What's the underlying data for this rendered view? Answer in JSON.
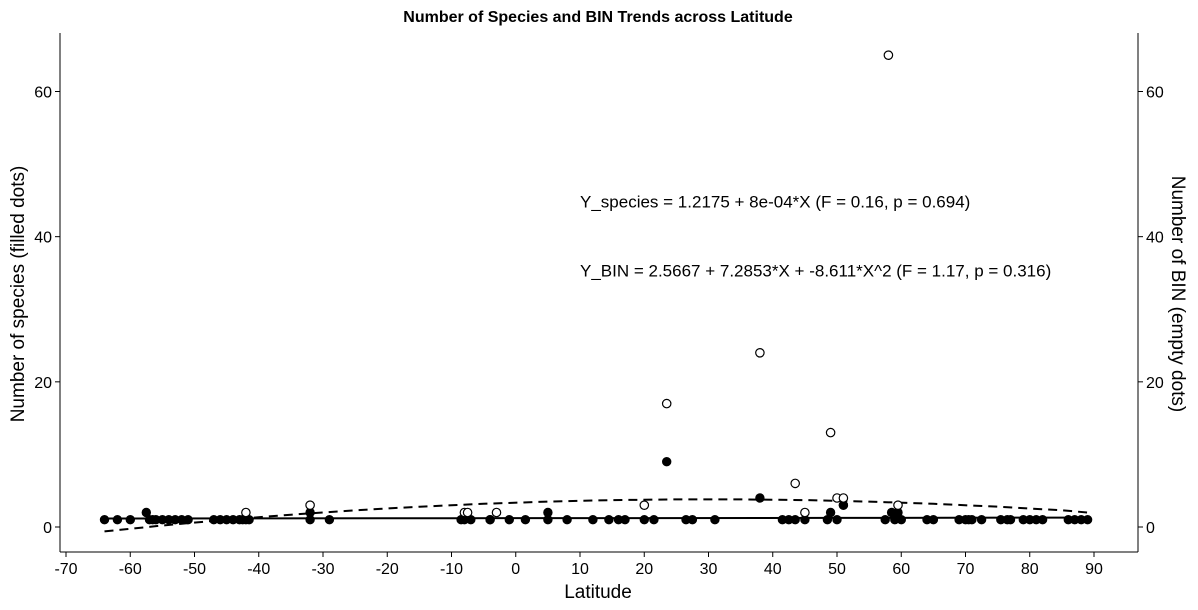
{
  "chart_data": {
    "type": "scatter",
    "title": "Number of Species and BIN Trends across Latitude",
    "xlabel": "Latitude",
    "ylabel": "Number of species (filled dots)",
    "y2label": "Number of BIN (empty dots)",
    "xlim": [
      -70,
      90
    ],
    "ylim": [
      -2,
      68
    ],
    "xticks": [
      -70,
      -60,
      -50,
      -40,
      -30,
      -20,
      -10,
      0,
      10,
      20,
      30,
      40,
      50,
      60,
      70,
      80,
      90
    ],
    "yticks": [
      0,
      20,
      40,
      60
    ],
    "grid": false,
    "annotations": [
      {
        "text": "Y_species = 1.2175 + 8e-04*X (F = 0.16,  p = 0.694)",
        "x": 10,
        "y": 44
      },
      {
        "text": "Y_BIN = 2.5667 + 7.2853*X + -8.611*X^2 (F = 1.17,  p = 0.316)",
        "x": 10,
        "y": 34.5
      }
    ],
    "series": [
      {
        "name": "Species",
        "marker": "filled-circle",
        "color": "#000000",
        "x": [
          -64,
          -62,
          -60,
          -57.5,
          -57,
          -56.5,
          -56,
          -55,
          -54,
          -53,
          -52,
          -51,
          -47,
          -46,
          -45,
          -44,
          -43,
          -42.5,
          -42,
          -41.5,
          -32,
          -32,
          -29,
          -8.5,
          -8,
          -7,
          -4,
          -4,
          -1,
          1.5,
          5,
          5,
          8,
          12,
          14.5,
          16,
          17,
          20,
          21.5,
          23.5,
          26.5,
          27.5,
          31,
          38,
          41.5,
          42.5,
          43.5,
          45,
          48.5,
          49,
          50,
          51,
          51,
          57.5,
          58.5,
          59,
          59.5,
          60,
          64,
          65,
          69,
          70,
          70.5,
          71,
          72.5,
          75.5,
          76.5,
          77,
          79,
          80,
          81,
          82,
          86,
          87,
          88,
          89
        ],
        "y": [
          1,
          1,
          1,
          2,
          1,
          1,
          1,
          1,
          1,
          1,
          1,
          1,
          1,
          1,
          1,
          1,
          1,
          1,
          1,
          1,
          1,
          2,
          1,
          1,
          1,
          1,
          1,
          1,
          1,
          1,
          1,
          2,
          1,
          1,
          1,
          1,
          1,
          1,
          1,
          9,
          1,
          1,
          1,
          4,
          1,
          1,
          1,
          1,
          1,
          2,
          1,
          3,
          3,
          1,
          2,
          1,
          2,
          1,
          1,
          1,
          1,
          1,
          1,
          1,
          1,
          1,
          1,
          1,
          1,
          1,
          1,
          1,
          1,
          1,
          1,
          1
        ]
      },
      {
        "name": "BIN",
        "marker": "empty-circle",
        "color": "#000000",
        "x": [
          -42,
          -32,
          -8,
          -7.5,
          -3,
          20,
          23.5,
          38,
          43.5,
          45,
          49,
          50,
          51,
          58,
          59.5
        ],
        "y": [
          2,
          3,
          2,
          2,
          2,
          3,
          17,
          24,
          6,
          2,
          13,
          4,
          4,
          65,
          3
        ]
      }
    ],
    "trend_lines": [
      {
        "name": "species-fit",
        "style": "solid",
        "x": [
          -64,
          -40,
          -10,
          20,
          50,
          89
        ],
        "y": [
          1.17,
          1.18,
          1.21,
          1.23,
          1.26,
          1.29
        ]
      },
      {
        "name": "BIN-fit",
        "style": "dashed",
        "x": [
          -64,
          -55,
          -45,
          -35,
          -25,
          -15,
          -5,
          5,
          15,
          25,
          35,
          45,
          55,
          65,
          75,
          85,
          89
        ],
        "y": [
          -0.6,
          0.2,
          1.0,
          1.7,
          2.3,
          2.8,
          3.2,
          3.5,
          3.7,
          3.8,
          3.8,
          3.7,
          3.5,
          3.2,
          2.8,
          2.3,
          2.0
        ]
      }
    ]
  }
}
